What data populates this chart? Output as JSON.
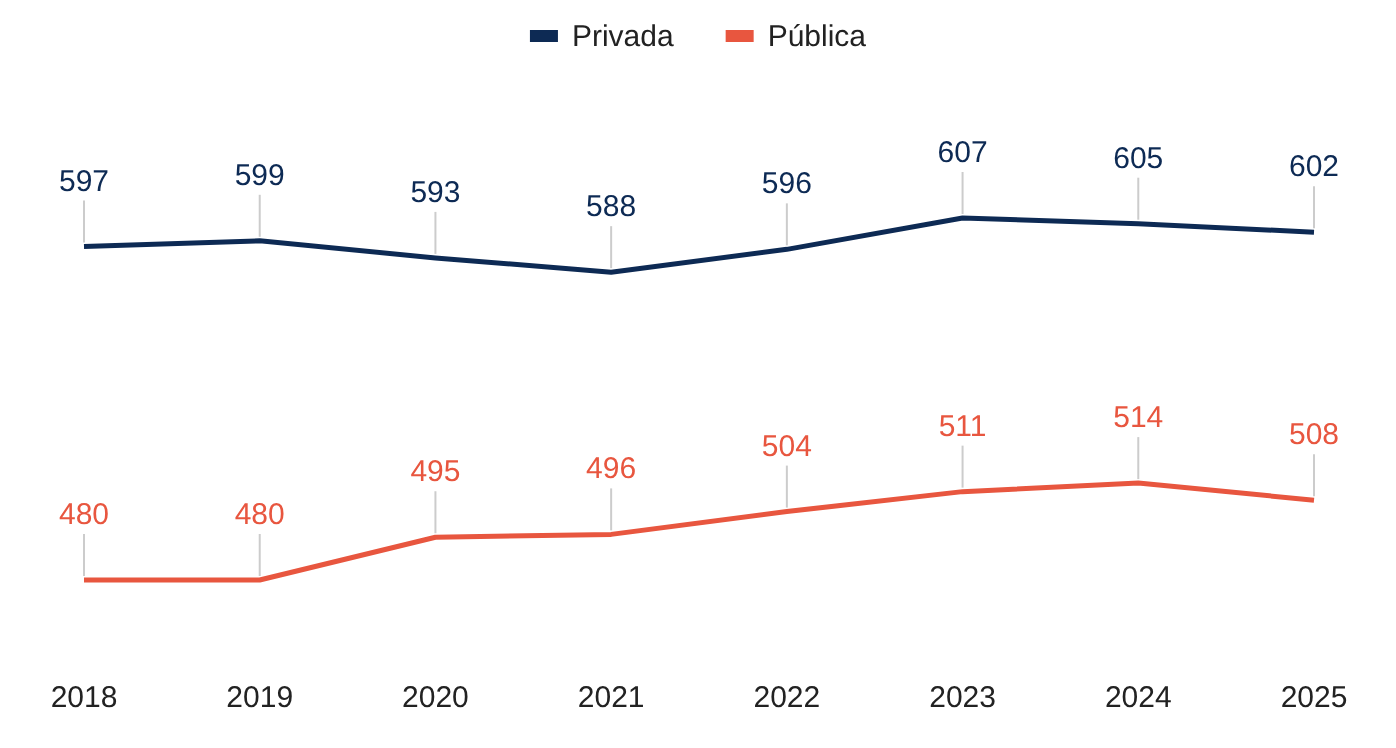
{
  "chart_data": {
    "type": "line",
    "categories": [
      "2018",
      "2019",
      "2020",
      "2021",
      "2022",
      "2023",
      "2024",
      "2025"
    ],
    "series": [
      {
        "name": "Privada",
        "color": "#0d2a54",
        "values": [
          597,
          599,
          593,
          588,
          596,
          607,
          605,
          602
        ]
      },
      {
        "name": "Pública",
        "color": "#e8563f",
        "values": [
          480,
          480,
          495,
          496,
          504,
          511,
          514,
          508
        ]
      }
    ],
    "data_labels": true,
    "legend": "top",
    "marker": "none",
    "line_style": "solid"
  }
}
